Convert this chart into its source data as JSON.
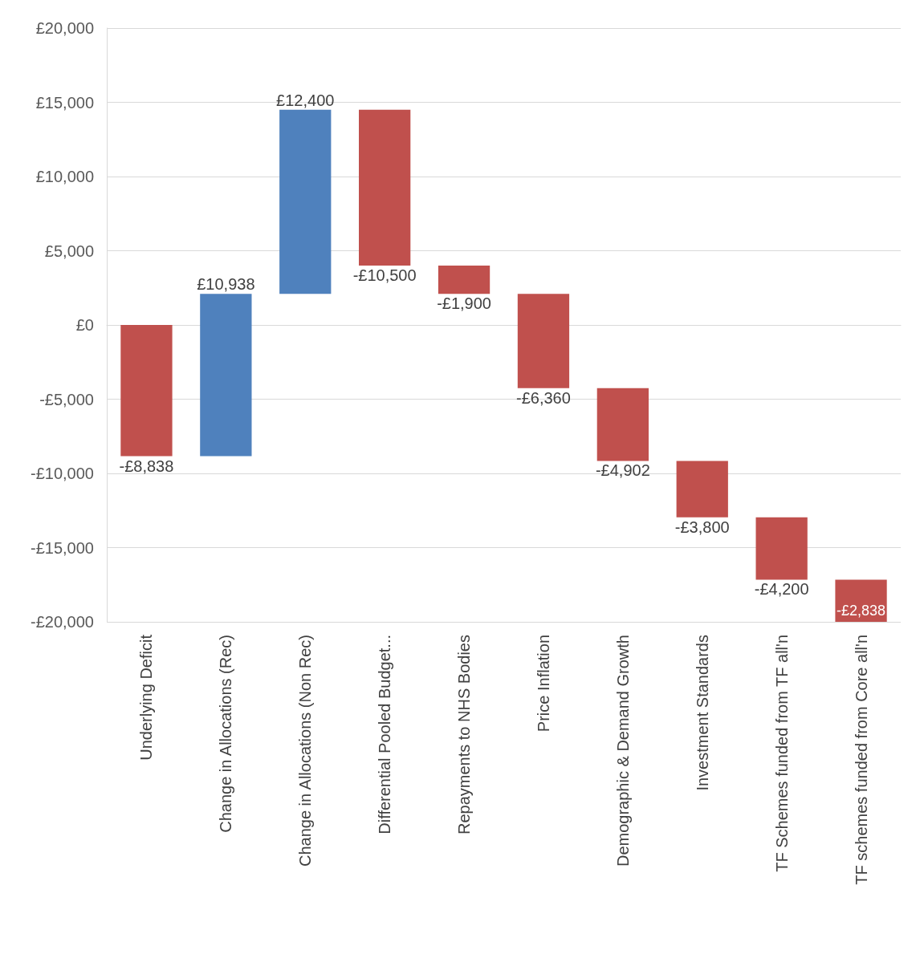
{
  "chart_data": {
    "type": "bar",
    "categories": [
      "Underlying Deficit",
      "Change in Allocations (Rec)",
      "Change in Allocations (Non Rec)",
      "Differential Pooled Budget...",
      "Repayments to NHS Bodies",
      "Price Inflation",
      "Demographic & Demand Growth",
      "Investment Standards",
      "TF Schemes funded from TF all'n",
      "TF schemes funded from Core all'n"
    ],
    "values": [
      -8838,
      10938,
      12400,
      -10500,
      -1900,
      -6360,
      -4902,
      -3800,
      -4200,
      -2838
    ],
    "base": [
      0,
      -8838,
      2100,
      14500,
      4000,
      2100,
      -4260,
      -9162,
      -12962,
      -17162
    ],
    "colors": [
      "#c0504d",
      "#4f81bd",
      "#4f81bd",
      "#c0504d",
      "#c0504d",
      "#c0504d",
      "#c0504d",
      "#c0504d",
      "#c0504d",
      "#c0504d"
    ],
    "value_labels": [
      "-£8,838",
      "£10,938",
      "£12,400",
      "-£10,500",
      "-£1,900",
      "-£6,360",
      "-£4,902",
      "-£3,800",
      "-£4,200",
      "-£2,838"
    ],
    "ylim": [
      -20000,
      20000
    ],
    "yticks": [
      {
        "value": -20000,
        "label": "-£20,000"
      },
      {
        "value": -15000,
        "label": "-£15,000"
      },
      {
        "value": -10000,
        "label": "-£10,000"
      },
      {
        "value": -5000,
        "label": "-£5,000"
      },
      {
        "value": 0,
        "label": "£0"
      },
      {
        "value": 5000,
        "label": "£5,000"
      },
      {
        "value": 10000,
        "label": "£10,000"
      },
      {
        "value": 15000,
        "label": "£15,000"
      },
      {
        "value": 20000,
        "label": "£20,000"
      }
    ],
    "grid": "y"
  }
}
